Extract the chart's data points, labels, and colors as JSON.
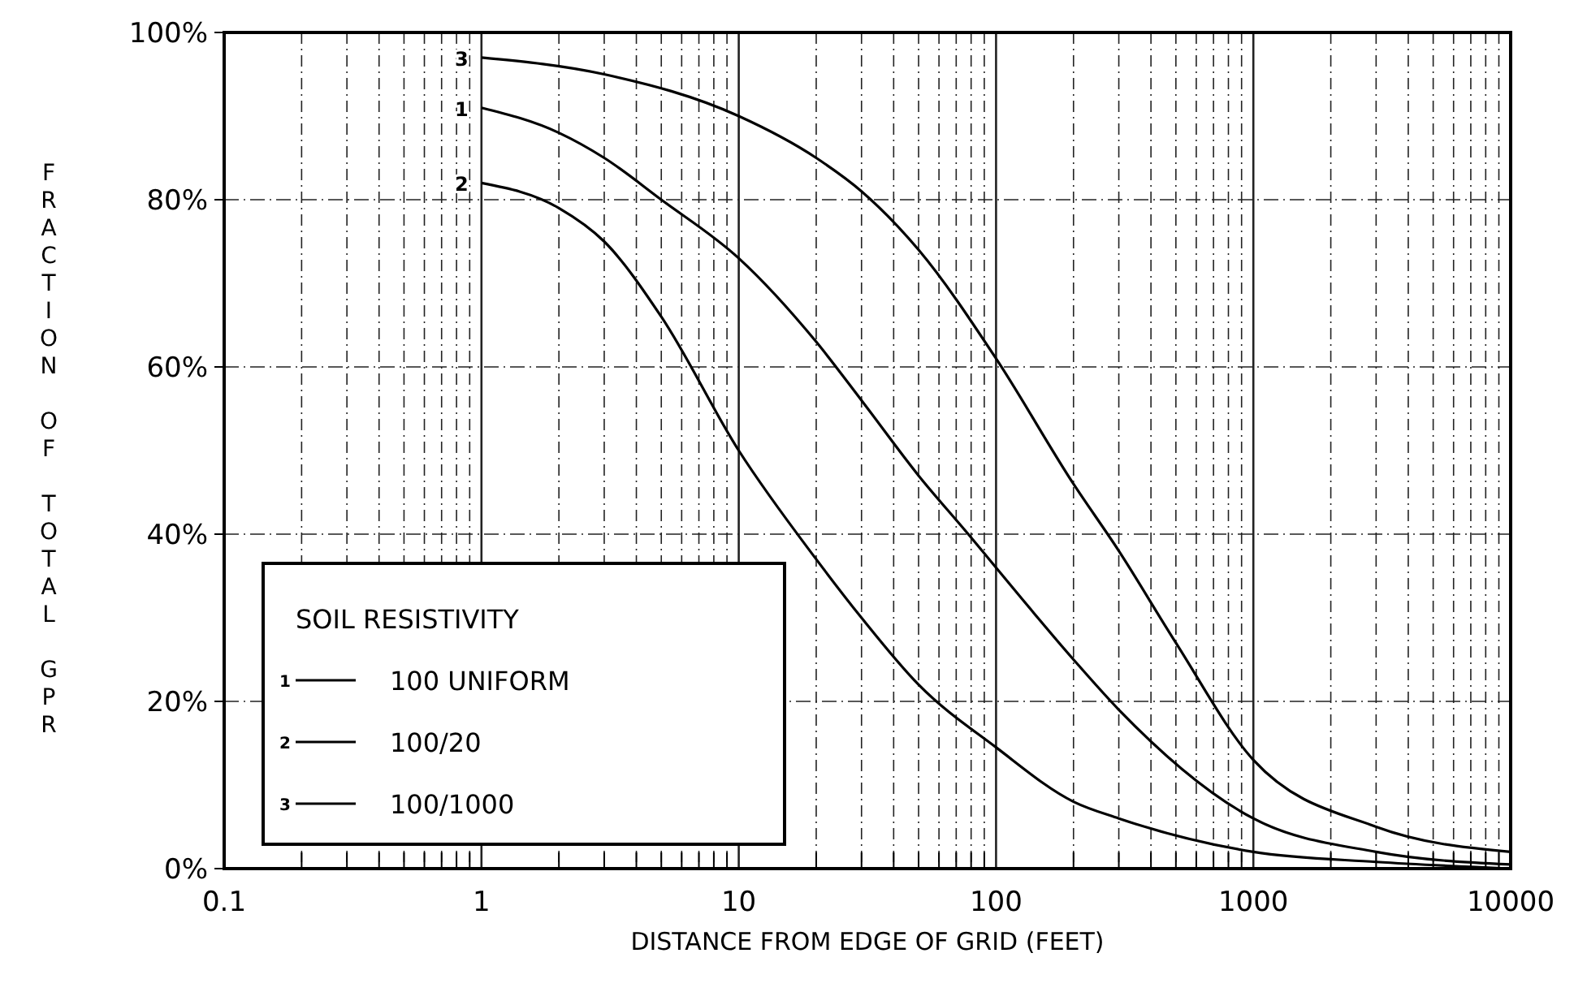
{
  "chart_data": {
    "type": "line",
    "xlabel": "DISTANCE FROM EDGE OF GRID (FEET)",
    "ylabel": "FRACTION OF TOTAL GPR",
    "legend_title": "SOIL RESISTIVITY",
    "legend": "bottom left",
    "grid": true,
    "log": "x",
    "line_style": "solid",
    "xlim": [
      0.1,
      10000
    ],
    "ylim": [
      0,
      100
    ],
    "xticks": [
      0.1,
      {
        "value": 0.2,
        "label": null
      },
      {
        "value": 0.3,
        "label": null
      },
      {
        "value": 0.4,
        "label": null
      },
      {
        "value": 0.5,
        "label": null
      },
      {
        "value": 0.6,
        "label": null
      },
      {
        "value": 0.7,
        "label": null
      },
      {
        "value": 0.8,
        "label": null
      },
      {
        "value": 0.9,
        "label": null
      },
      1,
      {
        "value": 2,
        "label": null
      },
      {
        "value": 3,
        "label": null
      },
      {
        "value": 4,
        "label": null
      },
      {
        "value": 5,
        "label": null
      },
      {
        "value": 6,
        "label": null
      },
      {
        "value": 7,
        "label": null
      },
      {
        "value": 8,
        "label": null
      },
      {
        "value": 9,
        "label": null
      },
      10,
      {
        "value": 20,
        "label": null
      },
      {
        "value": 30,
        "label": null
      },
      {
        "value": 40,
        "label": null
      },
      {
        "value": 50,
        "label": null
      },
      {
        "value": 60,
        "label": null
      },
      {
        "value": 70,
        "label": null
      },
      {
        "value": 80,
        "label": null
      },
      {
        "value": 90,
        "label": null
      },
      100,
      {
        "value": 200,
        "label": null
      },
      {
        "value": 300,
        "label": null
      },
      {
        "value": 400,
        "label": null
      },
      {
        "value": 500,
        "label": null
      },
      {
        "value": 600,
        "label": null
      },
      {
        "value": 700,
        "label": null
      },
      {
        "value": 800,
        "label": null
      },
      {
        "value": 900,
        "label": null
      },
      1000,
      {
        "value": 2000,
        "label": null
      },
      {
        "value": 3000,
        "label": null
      },
      {
        "value": 4000,
        "label": null
      },
      {
        "value": 5000,
        "label": null
      },
      {
        "value": 6000,
        "label": null
      },
      {
        "value": 7000,
        "label": null
      },
      {
        "value": 8000,
        "label": null
      },
      {
        "value": 9000,
        "label": null
      },
      10000
    ],
    "yticks": [
      {
        "value": 0,
        "label": "0%"
      },
      {
        "value": 20,
        "label": "20%"
      },
      {
        "value": 40,
        "label": "40%"
      },
      {
        "value": 60,
        "label": "60%"
      },
      {
        "value": 80,
        "label": "80%"
      },
      {
        "value": 100,
        "label": "100%"
      }
    ],
    "series": [
      {
        "name": "100 UNIFORM",
        "color": "#000000",
        "x": [
          1,
          2,
          3,
          5,
          10,
          20,
          30,
          50,
          78,
          100,
          200,
          300,
          1000,
          3000,
          10000
        ],
        "values": [
          91,
          88,
          85,
          80,
          73,
          63,
          56,
          47,
          40,
          36,
          25,
          19,
          6,
          2,
          0.5
        ]
      },
      {
        "name": "100/20",
        "color": "#000000",
        "x": [
          1,
          2,
          3,
          5,
          10,
          20,
          30,
          50,
          100,
          200,
          300,
          1000,
          3000,
          10000
        ],
        "values": [
          82,
          79,
          75,
          66,
          50,
          37,
          30,
          22,
          14.5,
          8,
          6,
          2,
          0.8,
          0
        ]
      },
      {
        "name": "100/1000",
        "color": "#000000",
        "x": [
          1,
          3,
          10,
          20,
          30,
          50,
          100,
          200,
          300,
          500,
          1000,
          3000,
          10000
        ],
        "values": [
          97,
          95,
          90,
          85,
          81,
          74,
          61,
          46,
          38,
          27,
          13,
          5,
          2
        ]
      }
    ],
    "annotations": [
      "1",
      "2",
      "3"
    ]
  }
}
